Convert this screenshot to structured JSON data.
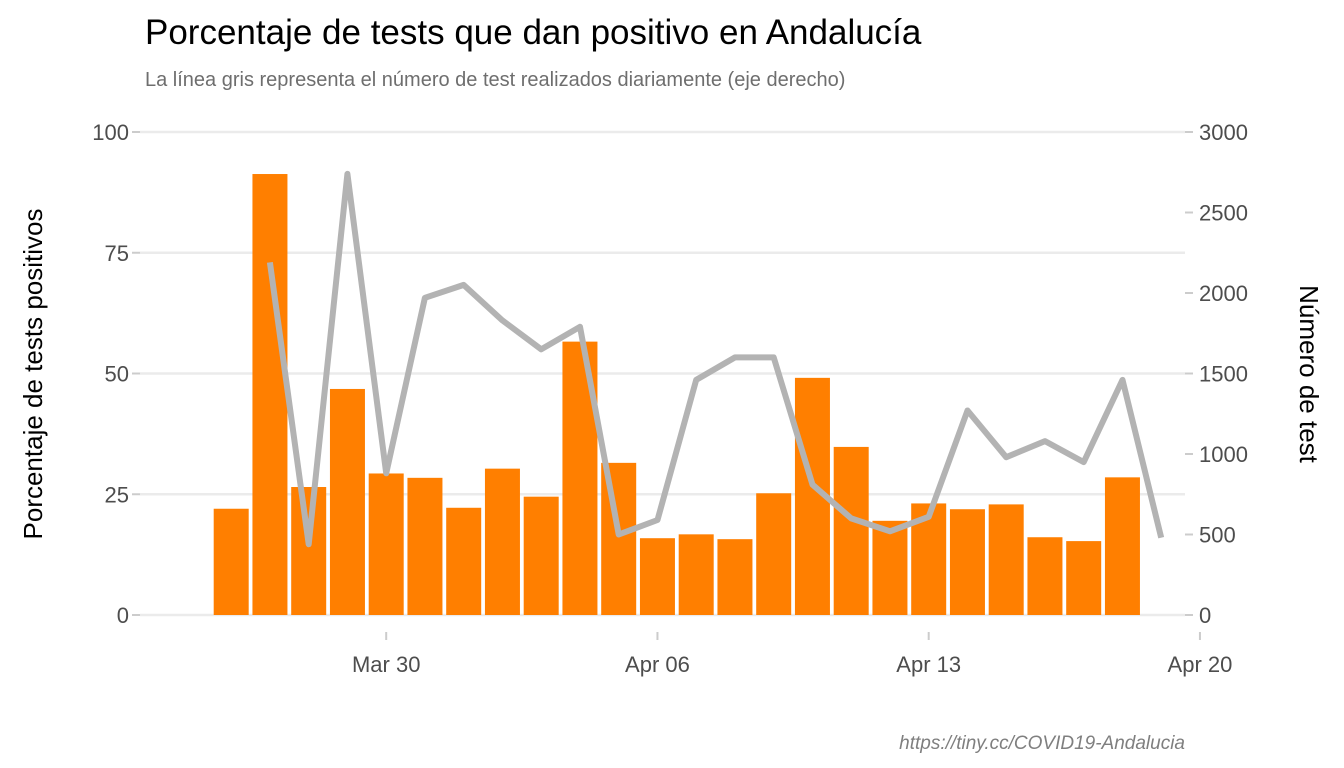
{
  "chart_data": {
    "type": "bar",
    "title": "Porcentaje de tests que dan positivo en Andalucía",
    "subtitle": "La línea gris representa el número de test realizados diariamente (eje derecho)",
    "caption": "https://tiny.cc/COVID19-Andalucia",
    "ylabel": "Porcentaje de tests positivos",
    "y2label": "Número de test",
    "ylim": [
      0,
      100
    ],
    "y2lim": [
      0,
      3000
    ],
    "yticks": [
      "0",
      "25",
      "50",
      "75",
      "100"
    ],
    "y2ticks": [
      "0",
      "500",
      "1000",
      "1500",
      "2000",
      "2500",
      "3000"
    ],
    "xticks": [
      {
        "label": "Mar 30",
        "date": "2020-03-30"
      },
      {
        "label": "Apr 06",
        "date": "2020-04-06"
      },
      {
        "label": "Apr 13",
        "date": "2020-04-13"
      },
      {
        "label": "Apr 20",
        "date": "2020-04-20"
      }
    ],
    "x": [
      "2020-03-26",
      "2020-03-27",
      "2020-03-28",
      "2020-03-29",
      "2020-03-30",
      "2020-03-31",
      "2020-04-01",
      "2020-04-02",
      "2020-04-03",
      "2020-04-04",
      "2020-04-05",
      "2020-04-06",
      "2020-04-07",
      "2020-04-08",
      "2020-04-09",
      "2020-04-10",
      "2020-04-11",
      "2020-04-12",
      "2020-04-13",
      "2020-04-14",
      "2020-04-15",
      "2020-04-16",
      "2020-04-17",
      "2020-04-18",
      "2020-04-19"
    ],
    "series": [
      {
        "name": "Porcentaje de tests positivos",
        "type": "bar",
        "axis": "left",
        "color": "#ff7f00",
        "values": [
          22,
          91.3,
          26.5,
          46.8,
          29.3,
          28.4,
          22.2,
          30.3,
          24.5,
          56.6,
          31.5,
          15.9,
          16.7,
          15.7,
          25.2,
          49.1,
          34.8,
          19.5,
          23.1,
          21.9,
          22.9,
          16.1,
          15.3,
          28.5,
          null
        ]
      },
      {
        "name": "Número de test",
        "type": "line",
        "axis": "right",
        "color": "#b3b3b3",
        "values": [
          null,
          2190,
          440,
          2740,
          880,
          1970,
          2050,
          1830,
          1650,
          1790,
          500,
          590,
          1460,
          1600,
          1600,
          810,
          600,
          520,
          610,
          1270,
          980,
          1080,
          950,
          1460,
          480
        ]
      }
    ]
  }
}
